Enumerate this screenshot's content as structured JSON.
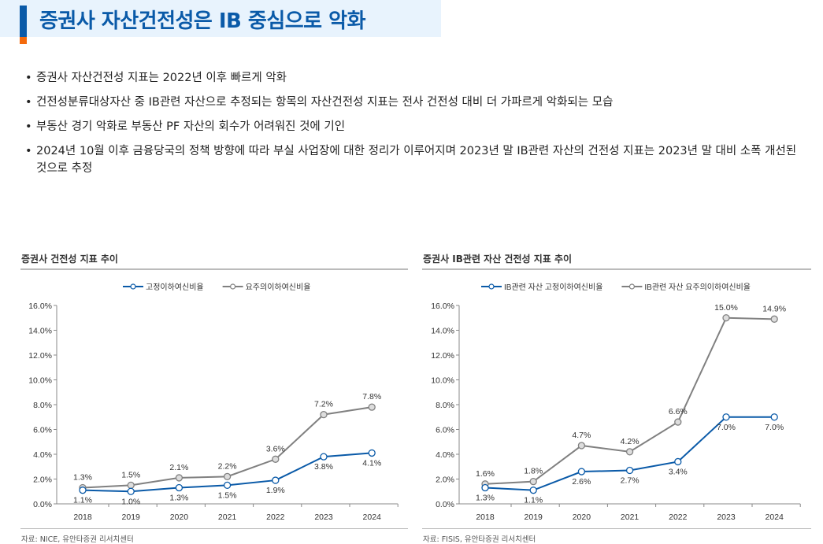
{
  "header": {
    "title": "증권사 자산건전성은 IB 중심으로 악화"
  },
  "bullets": [
    "증권사 자산건전성 지표는 2022년 이후 빠르게 악화",
    "건전성분류대상자산 중 IB관련 자산으로 추정되는 항목의 자산건전성 지표는 전사 건전성 대비 더 가파르게 악화되는 모습",
    "부동산 경기 악화로 부동산 PF 자산의 회수가 어려워진 것에 기인",
    "2024년 10월 이후 금융당국의 정책 방향에 따라 부실 사업장에 대한 정리가 이루어지며 2023년 말 IB관련 자산의 건전성 지표는 2023년 말 대비 소폭 개선된 것으로 추정"
  ],
  "colors": {
    "blue": "#0a5aa8",
    "gray": "#808080",
    "title_bg": "#e8f3fd",
    "accent_orange": "#f46a0c"
  },
  "chart_data": [
    {
      "type": "line",
      "title": "증권사 건전성 지표 추이",
      "source": "자료: NICE, 유안타증권 리서치센터",
      "categories": [
        "2018",
        "2019",
        "2020",
        "2021",
        "2022",
        "2023",
        "2024"
      ],
      "ylim": [
        0,
        16
      ],
      "yticks": [
        "0.0%",
        "2.0%",
        "4.0%",
        "6.0%",
        "8.0%",
        "10.0%",
        "12.0%",
        "14.0%",
        "16.0%"
      ],
      "legend_position": "top-center",
      "grid": false,
      "series": [
        {
          "name": "고정이하여신비율",
          "color": "#0a5aa8",
          "values": [
            1.1,
            1.0,
            1.3,
            1.5,
            1.9,
            3.8,
            4.1
          ],
          "labels": [
            "1.1%",
            "1.0%",
            "1.3%",
            "1.5%",
            "1.9%",
            "3.8%",
            "4.1%"
          ]
        },
        {
          "name": "요주의이하여신비율",
          "color": "#808080",
          "values": [
            1.3,
            1.5,
            2.1,
            2.2,
            3.6,
            7.2,
            7.8
          ],
          "labels": [
            "1.3%",
            "1.5%",
            "2.1%",
            "2.2%",
            "3.6%",
            "7.2%",
            "7.8%"
          ]
        }
      ]
    },
    {
      "type": "line",
      "title": "증권사 IB관련 자산 건전성 지표 추이",
      "source": "자료: FISIS, 유안타증권 리서치센터",
      "categories": [
        "2018",
        "2019",
        "2020",
        "2021",
        "2022",
        "2023",
        "2024"
      ],
      "ylim": [
        0,
        16
      ],
      "yticks": [
        "0.0%",
        "2.0%",
        "4.0%",
        "6.0%",
        "8.0%",
        "10.0%",
        "12.0%",
        "14.0%",
        "16.0%"
      ],
      "legend_position": "top-center",
      "grid": false,
      "series": [
        {
          "name": "IB관련 자산 고정이하여신비율",
          "color": "#0a5aa8",
          "values": [
            1.3,
            1.1,
            2.6,
            2.7,
            3.4,
            7.0,
            7.0
          ],
          "labels": [
            "1.3%",
            "1.1%",
            "2.6%",
            "2.7%",
            "3.4%",
            "7.0%",
            "7.0%"
          ]
        },
        {
          "name": "IB관련 자산 요주의이하여신비율",
          "color": "#808080",
          "values": [
            1.6,
            1.8,
            4.7,
            4.2,
            6.6,
            15.0,
            14.9
          ],
          "labels": [
            "1.6%",
            "1.8%",
            "4.7%",
            "4.2%",
            "6.6%",
            "15.0%",
            "14.9%"
          ]
        }
      ]
    }
  ]
}
